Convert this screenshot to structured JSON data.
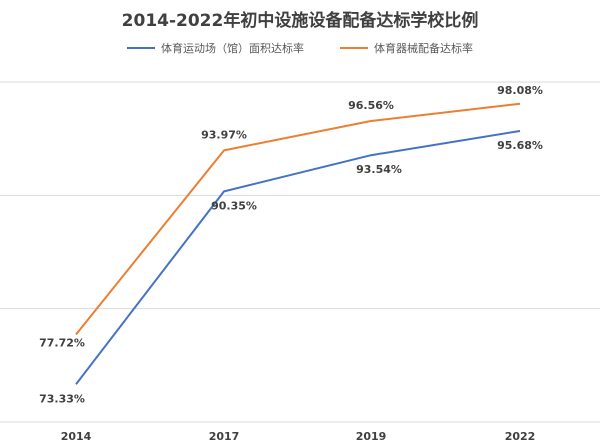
{
  "chart_data": {
    "type": "line",
    "title": "2014-2022年初中设施设备配备达标学校比例",
    "categories": [
      "2014",
      "2017",
      "2019",
      "2022"
    ],
    "series": [
      {
        "name": "体育运动场（馆）面积达标率",
        "color": "#4472C4",
        "values": [
          73.33,
          90.35,
          93.54,
          95.68
        ],
        "labels": [
          "73.33%",
          "90.35%",
          "93.54%",
          "95.68%"
        ]
      },
      {
        "name": "体育器械配备达标率",
        "color": "#ED7D31",
        "values": [
          77.72,
          93.97,
          96.56,
          98.08
        ],
        "labels": [
          "77.72%",
          "93.97%",
          "96.56%",
          "98.08%"
        ]
      }
    ],
    "ylim": [
      70,
      100
    ],
    "grid": true,
    "legend": "top"
  }
}
